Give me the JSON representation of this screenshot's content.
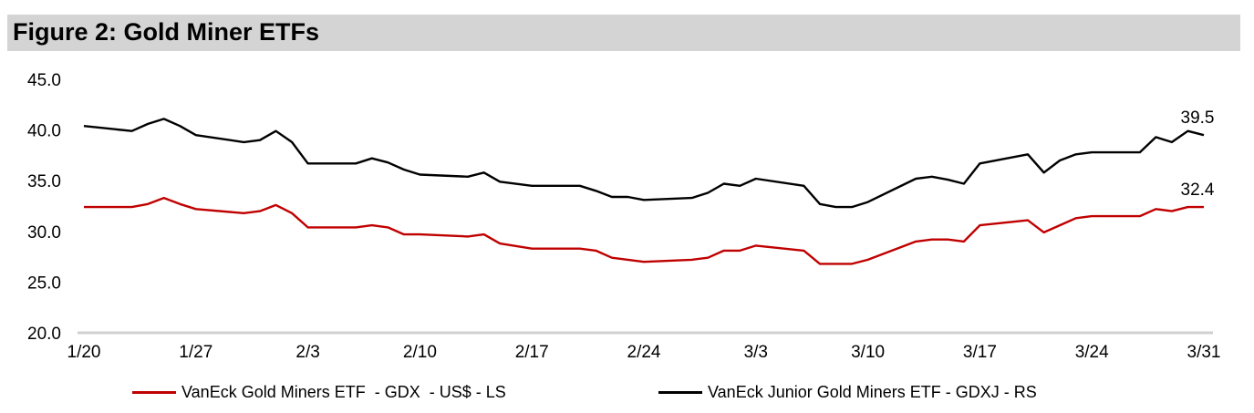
{
  "title": "Figure 2: Gold Miner ETFs",
  "chart_data": {
    "type": "line",
    "title": "Figure 2: Gold Miner ETFs",
    "xlabel": "",
    "ylabel": "",
    "x_unit": "days since 1/20",
    "ylim": [
      20,
      45
    ],
    "yticks": [
      "45.0",
      "40.0",
      "35.0",
      "30.0",
      "25.0",
      "20.0"
    ],
    "ytick_values": [
      45,
      40,
      35,
      30,
      25,
      20
    ],
    "xticks": [
      "1/20",
      "1/27",
      "2/3",
      "2/10",
      "2/17",
      "2/24",
      "3/3",
      "3/10",
      "3/17",
      "3/24",
      "3/31"
    ],
    "xtick_values": [
      0,
      7,
      14,
      21,
      28,
      35,
      42,
      49,
      56,
      63,
      70
    ],
    "grid": false,
    "legend_position": "bottom",
    "series": [
      {
        "name": "VanEck Gold Miners ETF  - GDX  - US$ - LS",
        "color": "#c00000",
        "end_label": "32.4",
        "x": [
          0,
          3,
          4,
          5,
          6,
          7,
          10,
          11,
          12,
          13,
          14,
          17,
          18,
          19,
          20,
          21,
          24,
          25,
          26,
          28,
          31,
          32,
          33,
          35,
          38,
          39,
          40,
          41,
          42,
          45,
          46,
          48,
          49,
          52,
          53,
          54,
          55,
          56,
          59,
          60,
          61,
          62,
          63,
          66,
          67,
          68,
          69,
          70
        ],
        "y": [
          32.4,
          32.4,
          32.7,
          33.3,
          32.7,
          32.2,
          31.8,
          32.0,
          32.6,
          31.8,
          30.4,
          30.4,
          30.6,
          30.4,
          29.7,
          29.7,
          29.5,
          29.7,
          28.8,
          28.3,
          28.3,
          28.1,
          27.4,
          27.0,
          27.2,
          27.4,
          28.1,
          28.1,
          28.6,
          28.1,
          26.8,
          26.8,
          27.2,
          29.0,
          29.2,
          29.2,
          29.0,
          30.6,
          31.1,
          29.9,
          30.6,
          31.3,
          31.5,
          31.5,
          32.2,
          32.0,
          32.4,
          32.4
        ]
      },
      {
        "name": "VanEck Junior Gold Miners ETF - GDXJ - RS",
        "color": "#000000",
        "end_label": "39.5",
        "x": [
          0,
          3,
          4,
          5,
          6,
          7,
          10,
          11,
          12,
          13,
          14,
          17,
          18,
          19,
          20,
          21,
          24,
          25,
          26,
          28,
          31,
          32,
          33,
          34,
          35,
          38,
          39,
          40,
          41,
          42,
          45,
          46,
          47,
          48,
          49,
          52,
          53,
          54,
          55,
          56,
          59,
          60,
          61,
          62,
          63,
          66,
          67,
          68,
          69,
          70
        ],
        "y": [
          40.4,
          39.9,
          40.6,
          41.1,
          40.4,
          39.5,
          38.8,
          39.0,
          39.9,
          38.8,
          36.7,
          36.7,
          37.2,
          36.8,
          36.1,
          35.6,
          35.4,
          35.8,
          34.9,
          34.5,
          34.5,
          34.0,
          33.4,
          33.4,
          33.1,
          33.3,
          33.8,
          34.7,
          34.5,
          35.2,
          34.5,
          32.7,
          32.4,
          32.4,
          32.9,
          35.2,
          35.4,
          35.1,
          34.7,
          36.7,
          37.6,
          35.8,
          37.0,
          37.6,
          37.8,
          37.8,
          39.3,
          38.8,
          39.9,
          39.5
        ]
      }
    ]
  }
}
